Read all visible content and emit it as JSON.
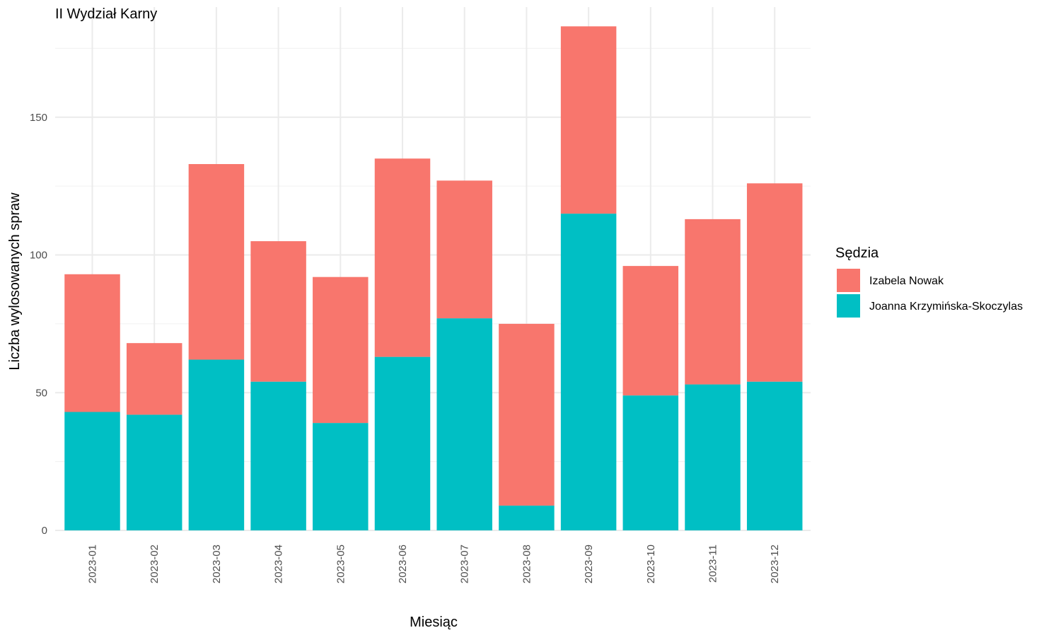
{
  "chart_data": {
    "type": "bar",
    "stacked": true,
    "title": "II Wydział Karny",
    "xlabel": "Miesiąc",
    "ylabel": "Liczba wylosowanych spraw",
    "categories": [
      "2023-01",
      "2023-02",
      "2023-03",
      "2023-04",
      "2023-05",
      "2023-06",
      "2023-07",
      "2023-08",
      "2023-09",
      "2023-10",
      "2023-11",
      "2023-12"
    ],
    "series": [
      {
        "name": "Joanna Krzymińska-Skoczylas",
        "color": "#00BFC4",
        "values": [
          43,
          42,
          62,
          54,
          39,
          63,
          77,
          9,
          115,
          49,
          53,
          54
        ]
      },
      {
        "name": "Izabela Nowak",
        "color": "#F8766D",
        "values": [
          50,
          26,
          71,
          51,
          53,
          72,
          50,
          66,
          68,
          47,
          60,
          72
        ]
      }
    ],
    "ylim": [
      0,
      190
    ],
    "yticks": [
      0,
      50,
      100,
      150
    ],
    "grid": true,
    "legend": {
      "title": "Sędzia",
      "position": "right",
      "order": [
        "Izabela Nowak",
        "Joanna Krzymińska-Skoczylas"
      ]
    }
  }
}
